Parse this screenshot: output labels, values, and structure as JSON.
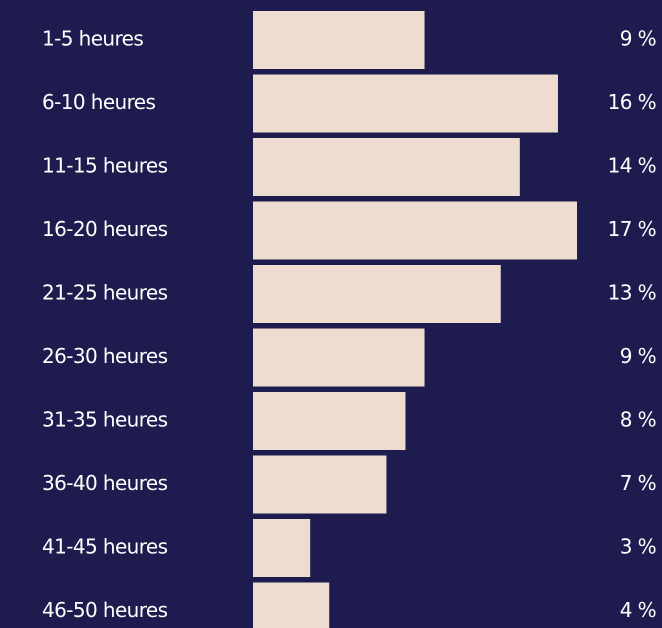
{
  "chart_data": {
    "type": "bar",
    "orientation": "horizontal",
    "categories": [
      "1-5 heures",
      "6-10 heures",
      "11-15 heures",
      "16-20 heures",
      "21-25 heures",
      "26-30 heures",
      "31-35 heures",
      "36-40 heures",
      "41-45 heures",
      "46-50 heures"
    ],
    "values": [
      9,
      16,
      14,
      17,
      13,
      9,
      8,
      7,
      3,
      4
    ],
    "value_labels": [
      "9 %",
      "16 %",
      "14 %",
      "17 %",
      "13 %",
      "9 %",
      "8 %",
      "7 %",
      "3 %",
      "4 %"
    ],
    "color": "#efdcd0"
  }
}
